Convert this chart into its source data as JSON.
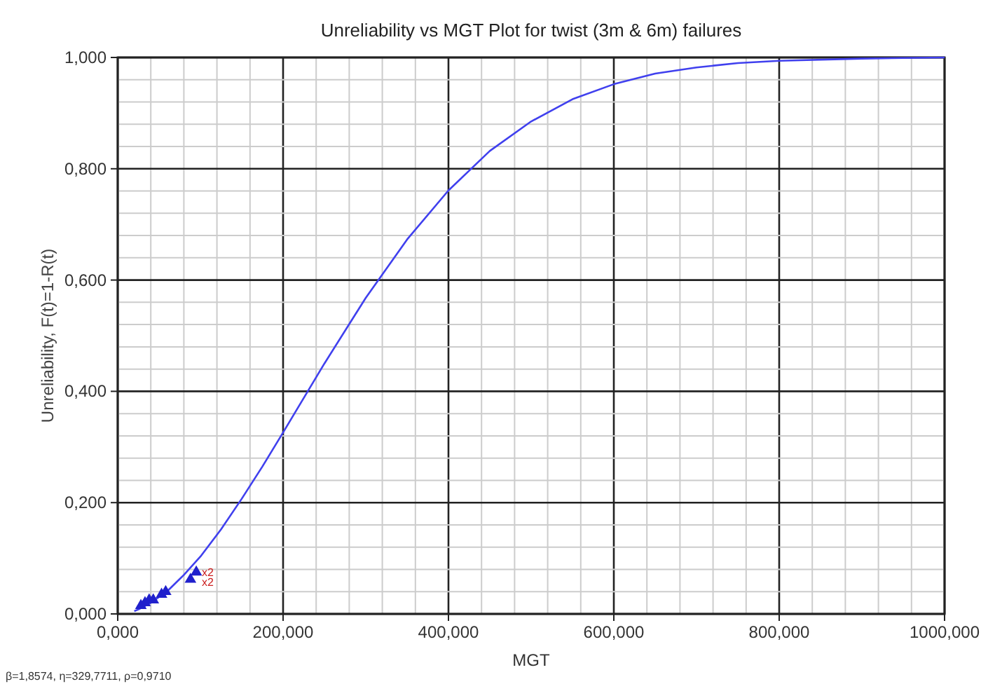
{
  "chart_data": {
    "type": "line",
    "title": "Unreliability vs MGT Plot for twist (3m & 6m) failures",
    "xlabel": "MGT",
    "ylabel": "Unreliability, F(t)=1-R(t)",
    "annotations": [
      "β=1,8574, η=329,7711, ρ=0,9710",
      {
        "text": "x2",
        "x": 95,
        "y": 0.075
      },
      {
        "text": "x2",
        "x": 95,
        "y": 0.058
      }
    ],
    "xlim": [
      0,
      1000
    ],
    "ylim": [
      0,
      1
    ],
    "xticks": [
      {
        "value": 0,
        "label": "0,000"
      },
      {
        "value": 40,
        "label": null
      },
      {
        "value": 80,
        "label": null
      },
      {
        "value": 120,
        "label": null
      },
      {
        "value": 160,
        "label": null
      },
      {
        "value": 200,
        "label": "200,000"
      },
      {
        "value": 240,
        "label": null
      },
      {
        "value": 280,
        "label": null
      },
      {
        "value": 320,
        "label": null
      },
      {
        "value": 360,
        "label": null
      },
      {
        "value": 400,
        "label": "400,000"
      },
      {
        "value": 440,
        "label": null
      },
      {
        "value": 480,
        "label": null
      },
      {
        "value": 520,
        "label": null
      },
      {
        "value": 560,
        "label": null
      },
      {
        "value": 600,
        "label": "600,000"
      },
      {
        "value": 640,
        "label": null
      },
      {
        "value": 680,
        "label": null
      },
      {
        "value": 720,
        "label": null
      },
      {
        "value": 760,
        "label": null
      },
      {
        "value": 800,
        "label": "800,000"
      },
      {
        "value": 840,
        "label": null
      },
      {
        "value": 880,
        "label": null
      },
      {
        "value": 920,
        "label": null
      },
      {
        "value": 960,
        "label": null
      },
      {
        "value": 1000,
        "label": "1000,000"
      }
    ],
    "yticks": [
      {
        "value": 0,
        "label": "0,000"
      },
      {
        "value": 0.04,
        "label": null
      },
      {
        "value": 0.08,
        "label": null
      },
      {
        "value": 0.12,
        "label": null
      },
      {
        "value": 0.16,
        "label": null
      },
      {
        "value": 0.2,
        "label": "0,200"
      },
      {
        "value": 0.24,
        "label": null
      },
      {
        "value": 0.28,
        "label": null
      },
      {
        "value": 0.32,
        "label": null
      },
      {
        "value": 0.36,
        "label": null
      },
      {
        "value": 0.4,
        "label": "0,400"
      },
      {
        "value": 0.44,
        "label": null
      },
      {
        "value": 0.48,
        "label": null
      },
      {
        "value": 0.52,
        "label": null
      },
      {
        "value": 0.56,
        "label": null
      },
      {
        "value": 0.6,
        "label": "0,600"
      },
      {
        "value": 0.64,
        "label": null
      },
      {
        "value": 0.68,
        "label": null
      },
      {
        "value": 0.72,
        "label": null
      },
      {
        "value": 0.76,
        "label": null
      },
      {
        "value": 0.8,
        "label": "0,800"
      },
      {
        "value": 0.84,
        "label": null
      },
      {
        "value": 0.88,
        "label": null
      },
      {
        "value": 0.92,
        "label": null
      },
      {
        "value": 0.96,
        "label": null
      },
      {
        "value": 1,
        "label": "1,000"
      }
    ],
    "grid": true,
    "series": [
      {
        "color": "#4040ee",
        "marker": "none",
        "x": [
          20,
          25,
          40,
          60,
          80,
          100,
          125,
          150,
          175,
          200,
          250,
          300,
          350,
          400,
          450,
          500,
          550,
          600,
          650,
          700,
          750,
          800,
          900,
          1000
        ],
        "values": [
          0.005,
          0.008,
          0.02,
          0.041,
          0.07,
          0.103,
          0.152,
          0.207,
          0.265,
          0.326,
          0.45,
          0.568,
          0.673,
          0.761,
          0.832,
          0.885,
          0.925,
          0.952,
          0.971,
          0.982,
          0.99,
          0.994,
          0.998,
          1
        ]
      },
      {
        "type": "scatter",
        "color": "#2020cc",
        "marker": "triangle",
        "x": [
          28,
          33,
          38,
          43,
          53,
          58,
          88,
          95
        ],
        "values": [
          0.015,
          0.02,
          0.025,
          0.025,
          0.035,
          0.04,
          0.062,
          0.075
        ]
      }
    ]
  }
}
